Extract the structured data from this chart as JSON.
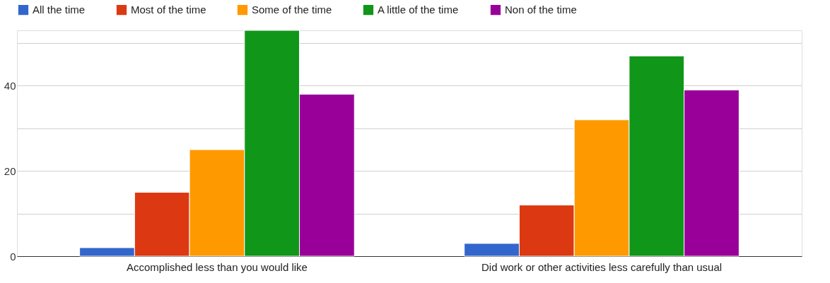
{
  "chart_data": {
    "type": "bar",
    "categories": [
      "Accomplished less than you would like",
      "Did work or other activities less carefully than usual"
    ],
    "series": [
      {
        "name": "All the time",
        "color": "#3366cc",
        "values": [
          2,
          3
        ]
      },
      {
        "name": "Most of the time",
        "color": "#dc3912",
        "values": [
          15,
          12
        ]
      },
      {
        "name": "Some of the time",
        "color": "#ff9900",
        "values": [
          25,
          32
        ]
      },
      {
        "name": "A little of the time",
        "color": "#109618",
        "values": [
          53,
          47
        ]
      },
      {
        "name": "Non of the time",
        "color": "#990099",
        "values": [
          38,
          39
        ]
      }
    ],
    "ylim": [
      0,
      53
    ],
    "yticks": [
      0,
      {
        "value": 10,
        "label": null
      },
      20,
      {
        "value": 30,
        "label": null
      },
      40,
      {
        "value": 50,
        "label": null
      }
    ],
    "grid": "y",
    "legend": "top"
  }
}
